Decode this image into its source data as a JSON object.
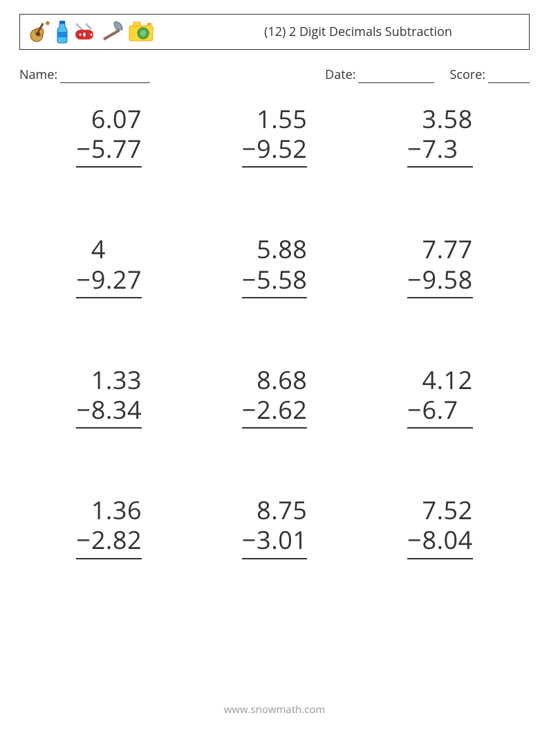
{
  "header": {
    "title": "(12) 2 Digit Decimals Subtraction",
    "icons": [
      "guitar-icon",
      "bottle-icon",
      "swiss-knife-icon",
      "axe-icon",
      "camera-icon"
    ]
  },
  "info": {
    "name_label": "Name:",
    "date_label": "Date:",
    "score_label": "Score:"
  },
  "style": {
    "number_fontsize": 36,
    "number_color": "#333333",
    "title_fontsize": 18,
    "info_fontsize": 18,
    "underline_color": "#333333",
    "background": "#ffffff",
    "footer_color": "#999999",
    "grid_columns": 3,
    "grid_rows": 4,
    "operator": "−"
  },
  "problems": [
    {
      "minuend": "6.07",
      "subtrahend": "5.77"
    },
    {
      "minuend": "1.55",
      "subtrahend": "9.52"
    },
    {
      "minuend": "3.58",
      "subtrahend": "7.3 "
    },
    {
      "minuend": "4",
      "subtrahend": "9.27"
    },
    {
      "minuend": "5.88",
      "subtrahend": "5.58"
    },
    {
      "minuend": "7.77",
      "subtrahend": "9.58"
    },
    {
      "minuend": "1.33",
      "subtrahend": "8.34"
    },
    {
      "minuend": "8.68",
      "subtrahend": "2.62"
    },
    {
      "minuend": "4.12",
      "subtrahend": "6.7 "
    },
    {
      "minuend": "1.36",
      "subtrahend": "2.82"
    },
    {
      "minuend": "8.75",
      "subtrahend": "3.01"
    },
    {
      "minuend": "7.52",
      "subtrahend": "8.04"
    }
  ],
  "footer": {
    "url": "www.snowmath.com"
  }
}
